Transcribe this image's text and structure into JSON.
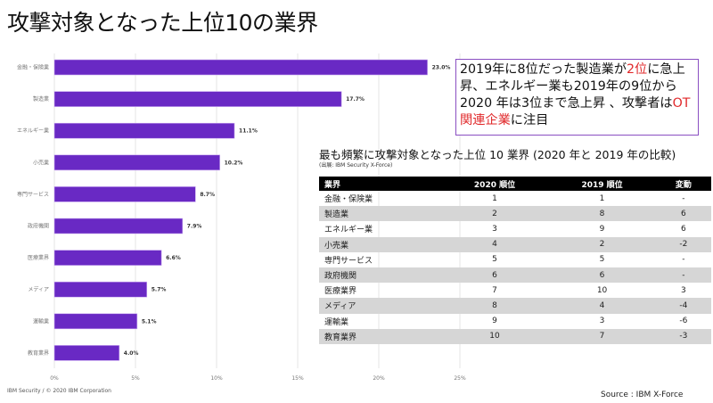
{
  "title": "攻撃対象となった上位10の業界",
  "callout": {
    "parts": [
      {
        "text": "2019年に8位だった製造業が",
        "color": "#111111"
      },
      {
        "text": "2位",
        "color": "#e0282a"
      },
      {
        "text": "に急上昇、エネルギー業も2019年の9位から2020 年は3位まで急上昇 、攻撃者は",
        "color": "#111111"
      },
      {
        "text": "OT関連企業",
        "color": "#e0282a"
      },
      {
        "text": "に注目",
        "color": "#111111"
      }
    ],
    "border_color": "#8a4fc2"
  },
  "chart_data": {
    "type": "bar",
    "orientation": "horizontal",
    "categories": [
      "金融・保険業",
      "製造業",
      "エネルギー業",
      "小売業",
      "専門サービス",
      "政府機関",
      "医療業界",
      "メディア",
      "運輸業",
      "教育業界"
    ],
    "values": [
      23.0,
      17.7,
      11.1,
      10.2,
      8.7,
      7.9,
      6.6,
      5.7,
      5.1,
      4.0
    ],
    "data_labels": [
      "23.0%",
      "17.7%",
      "11.1%",
      "10.2%",
      "8.7%",
      "7.9%",
      "6.6%",
      "5.7%",
      "5.1%",
      "4.0%"
    ],
    "xticks": [
      "0%",
      "5%",
      "10%",
      "15%",
      "20%",
      "25%"
    ],
    "xtick_values": [
      0,
      5,
      10,
      15,
      20,
      25
    ],
    "xlim": [
      0,
      25.5
    ],
    "grid": true,
    "bar_color": "#6929c4"
  },
  "table": {
    "title": "最も頻繁に攻撃対象となった上位 10 業界 (2020 年と 2019 年の比較)",
    "source": "(出展: IBM Security X-Force)",
    "headers": [
      "業界",
      "2020 順位",
      "2019 順位",
      "変動"
    ],
    "rows": [
      [
        "金融・保険業",
        "1",
        "1",
        "-"
      ],
      [
        "製造業",
        "2",
        "8",
        "6"
      ],
      [
        "エネルギー業",
        "3",
        "9",
        "6"
      ],
      [
        "小売業",
        "4",
        "2",
        "-2"
      ],
      [
        "専門サービス",
        "5",
        "5",
        "-"
      ],
      [
        "政府機関",
        "6",
        "6",
        "-"
      ],
      [
        "医療業界",
        "7",
        "10",
        "3"
      ],
      [
        "メディア",
        "8",
        "4",
        "-4"
      ],
      [
        "運輸業",
        "9",
        "3",
        "-6"
      ],
      [
        "教育業界",
        "10",
        "7",
        "-3"
      ]
    ]
  },
  "footer": "IBM Security / © 2020 IBM Corporation",
  "source": "Source : IBM X-Force"
}
